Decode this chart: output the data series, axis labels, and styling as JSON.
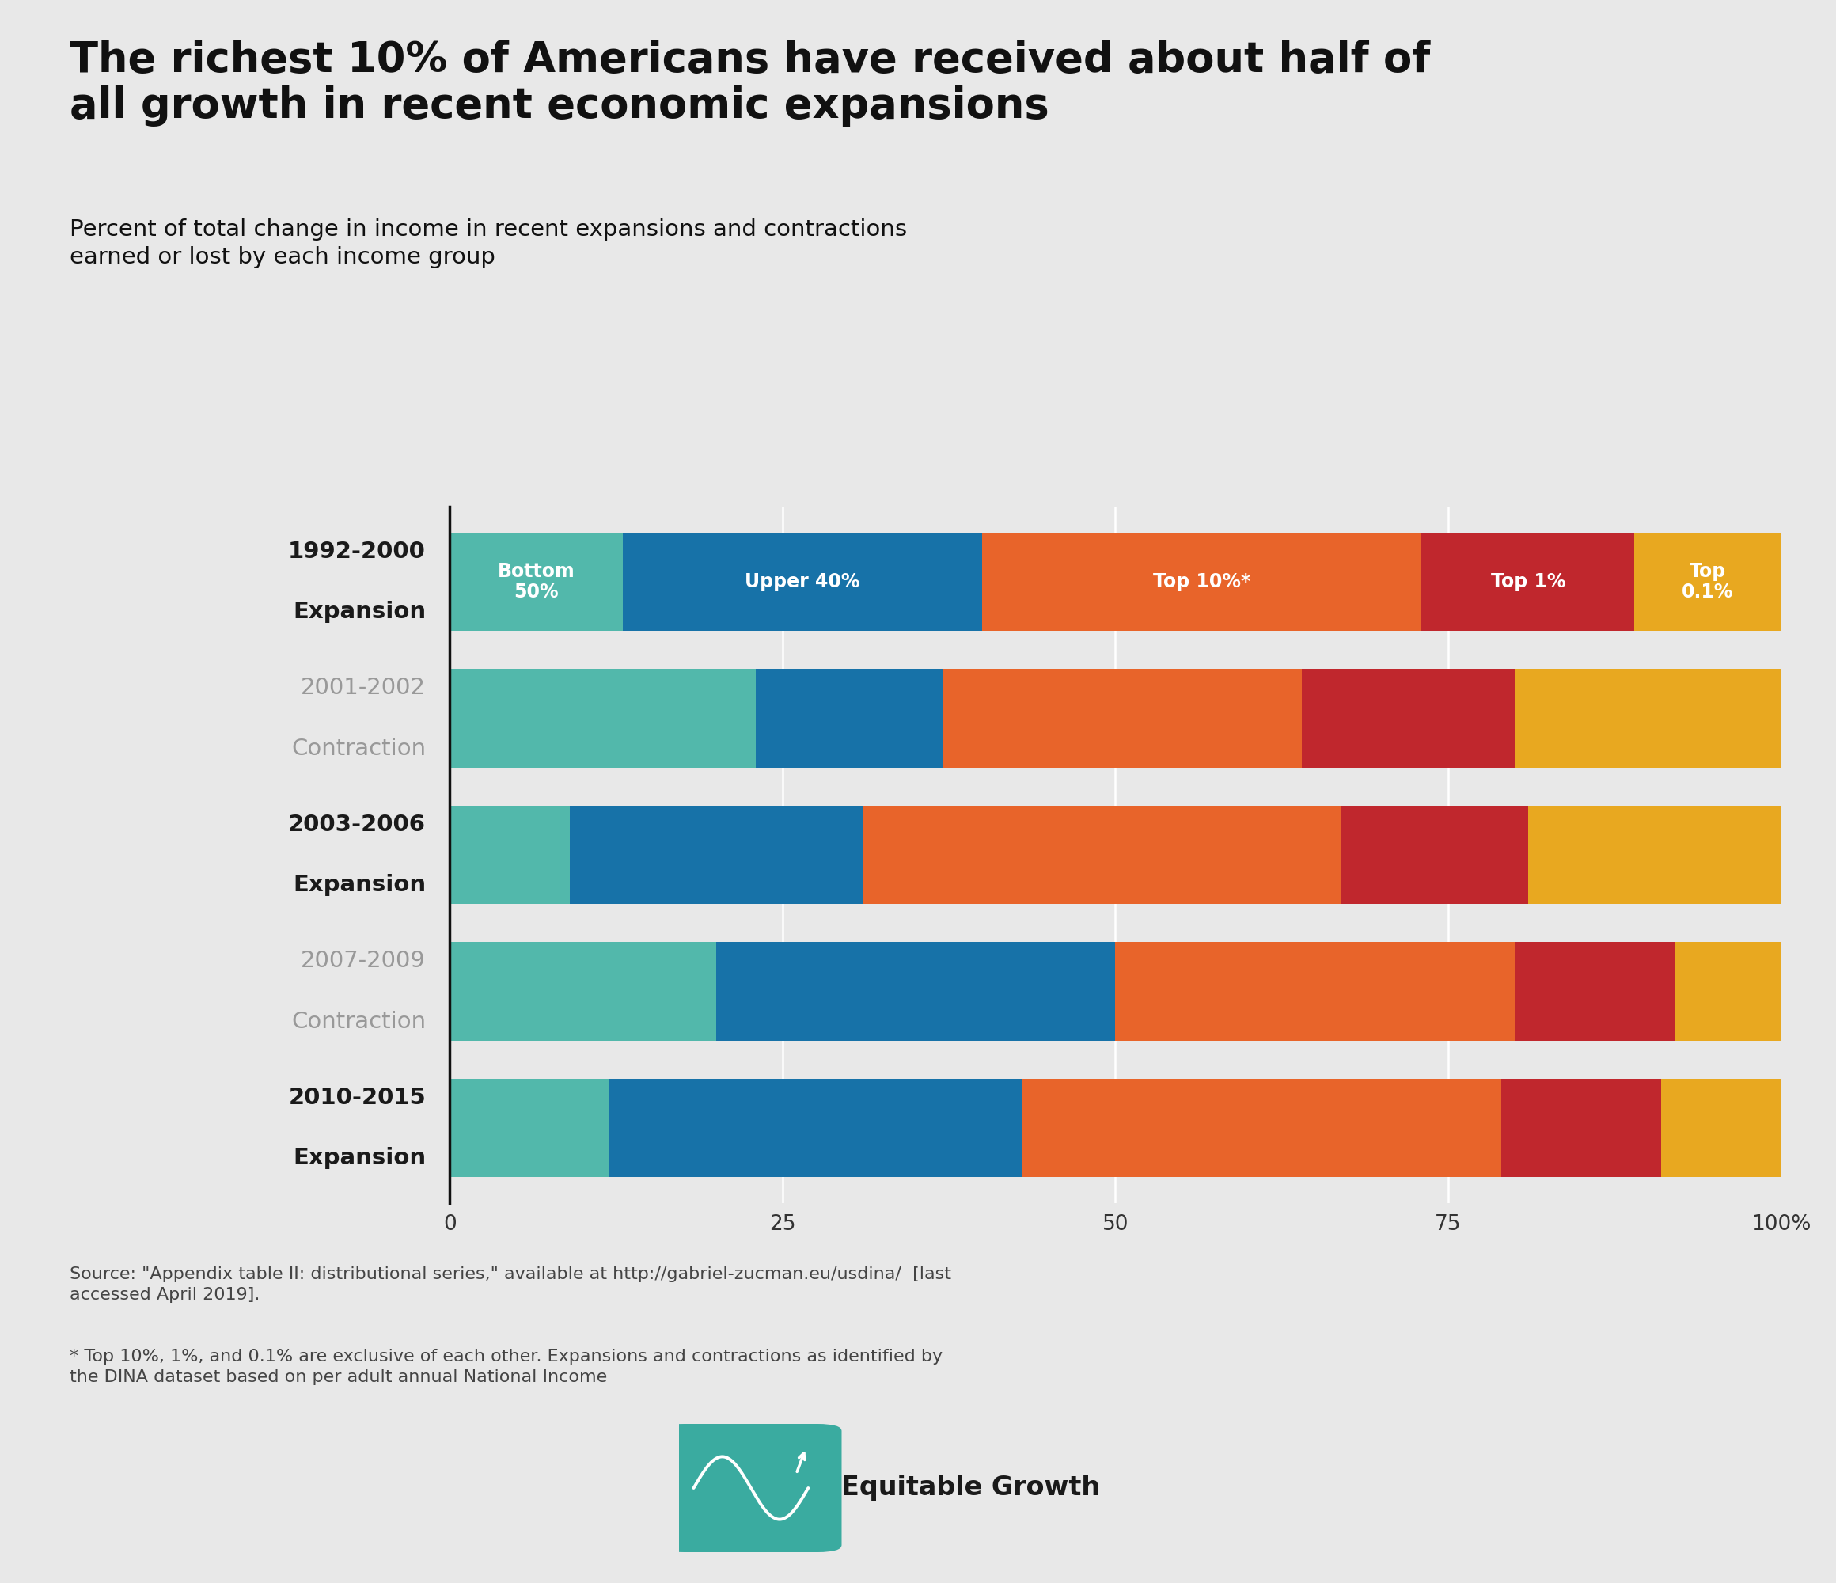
{
  "title": "The richest 10% of Americans have received about half of\nall growth in recent economic expansions",
  "subtitle": "Percent of total change in income in recent expansions and contractions\nearned or lost by each income group",
  "categories": [
    [
      "1992-2000",
      "Expansion"
    ],
    [
      "2001-2002",
      "Contraction"
    ],
    [
      "2003-2006",
      "Expansion"
    ],
    [
      "2007-2009",
      "Contraction"
    ],
    [
      "2010-2015",
      "Expansion"
    ]
  ],
  "is_expansion": [
    true,
    false,
    true,
    false,
    true
  ],
  "segments_order": [
    "Bottom 50%",
    "Upper 40%",
    "Top 10%*",
    "Top 1%",
    "Top 0.1%"
  ],
  "segments": {
    "Bottom 50%": [
      13,
      23,
      9,
      20,
      12
    ],
    "Upper 40%": [
      27,
      14,
      22,
      30,
      31
    ],
    "Top 10%*": [
      33,
      27,
      36,
      30,
      36
    ],
    "Top 1%": [
      16,
      16,
      14,
      12,
      12
    ],
    "Top 0.1%": [
      11,
      20,
      19,
      8,
      9
    ]
  },
  "colors": {
    "Bottom 50%": "#52b8ab",
    "Upper 40%": "#1772a8",
    "Top 10%*": "#e8642a",
    "Top 1%": "#c0272d",
    "Top 0.1%": "#e8a820"
  },
  "bar_labels": {
    "Bottom 50%": "Bottom\n50%",
    "Upper 40%": "Upper 40%",
    "Top 10%*": "Top 10%*",
    "Top 1%": "Top 1%",
    "Top 0.1%": "Top\n0.1%"
  },
  "expansion_label_color": "#1a1a1a",
  "contraction_label_color": "#999999",
  "background_color": "#e8e8e8",
  "source_text": "Source: \"Appendix table II: distributional series,\" available at http://gabriel-zucman.eu/usdina/  [last\naccessed April 2019].",
  "footnote_text": "* Top 10%, 1%, and 0.1% are exclusive of each other. Expansions and contractions as identified by\nthe DINA dataset based on per adult annual National Income",
  "logo_text": "Equitable Growth",
  "logo_color": "#3aaba0",
  "bar_height": 0.72,
  "xlim": [
    0,
    100
  ],
  "xticks": [
    0,
    25,
    50,
    75,
    100
  ],
  "xticklabels": [
    "0",
    "25",
    "50",
    "75",
    "100%"
  ]
}
